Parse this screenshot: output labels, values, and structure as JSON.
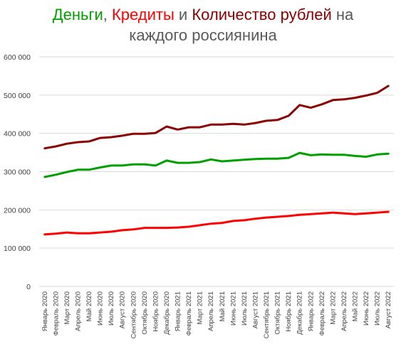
{
  "title": {
    "part1": "Деньги",
    "sep1": ", ",
    "part2": "Кредиты",
    "sep2": " и ",
    "part3": "Количество рублей",
    "sep3": " на",
    "line2": "каждого россиянина"
  },
  "chart_data": {
    "type": "line",
    "categories": [
      "Январь 2020",
      "Февраль 2020",
      "Март 2020",
      "Апрель 2020",
      "Май 2020",
      "Июнь 2020",
      "Июль 2020",
      "Август 2020",
      "Сентябрь 2020",
      "Октябрь 2020",
      "Ноябрь 2020",
      "Декабрь 2020",
      "Январь 2021",
      "Февраль 2021",
      "Март 2021",
      "Апрель 2021",
      "Май 2021",
      "Июнь 2021",
      "Июль 2021",
      "Август 2021",
      "Сентябрь 2021",
      "Октябрь 2021",
      "Ноябрь 2021",
      "Декабрь 2021",
      "Январь 2022",
      "Февраль 2022",
      "Март 2022",
      "Апрель 2022",
      "Май 2022",
      "Июнь 2022",
      "Июль 2022",
      "Август 2022"
    ],
    "series": [
      {
        "color": "#8b0000",
        "values": [
          361000,
          366000,
          373000,
          377000,
          379000,
          388000,
          390000,
          394000,
          399000,
          399000,
          401000,
          418000,
          410000,
          416000,
          416000,
          423000,
          423000,
          425000,
          423000,
          427000,
          433000,
          435000,
          446000,
          474000,
          467000,
          476000,
          487000,
          489000,
          493000,
          499000,
          506000,
          524000
        ]
      },
      {
        "color": "#00a000",
        "values": [
          286000,
          292000,
          299000,
          305000,
          305000,
          311000,
          316000,
          316000,
          319000,
          319000,
          316000,
          329000,
          323000,
          323000,
          325000,
          332000,
          327000,
          329000,
          331000,
          333000,
          334000,
          334000,
          336000,
          349000,
          343000,
          345000,
          344000,
          344000,
          341000,
          339000,
          345000,
          347000
        ]
      },
      {
        "color": "#ff0000",
        "values": [
          136000,
          138000,
          141000,
          139000,
          139000,
          141000,
          143000,
          147000,
          149000,
          153000,
          153000,
          153000,
          154000,
          156000,
          160000,
          164000,
          166000,
          171000,
          173000,
          177000,
          180000,
          182000,
          184000,
          187000,
          189000,
          191000,
          193000,
          191000,
          189000,
          191000,
          193000,
          195000
        ]
      }
    ],
    "ylim": [
      0,
      600000
    ],
    "yticks": [
      0,
      100000,
      200000,
      300000,
      400000,
      500000,
      600000
    ],
    "ytick_labels": [
      "0",
      "100 000",
      "200 000",
      "300 000",
      "400 000",
      "500 000",
      "600 000"
    ],
    "grid": "horizontal",
    "legend": "none"
  }
}
